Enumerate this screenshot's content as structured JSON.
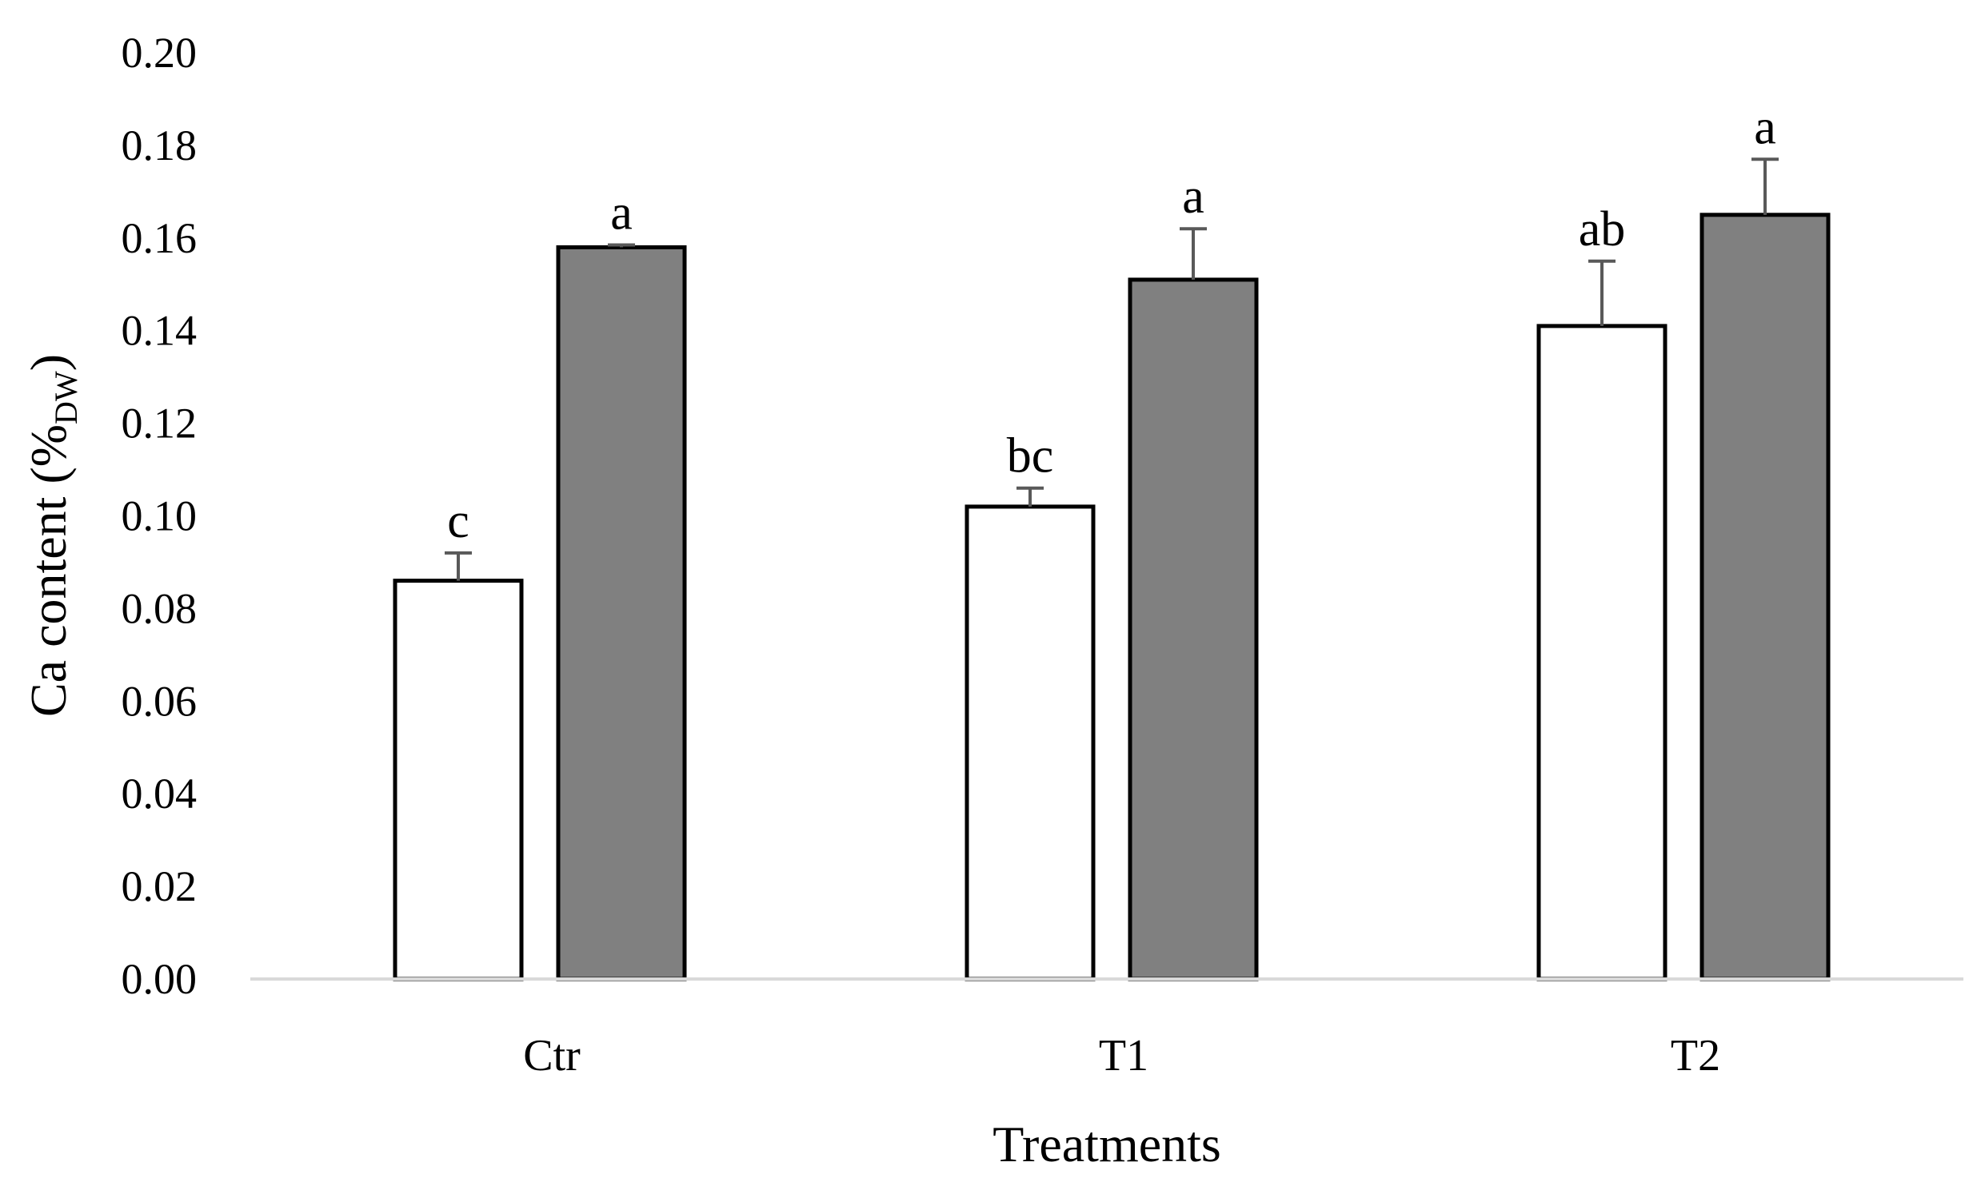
{
  "chart_data": {
    "type": "bar",
    "title": "",
    "xlabel": "Treatments",
    "ylabel": "Ca content (%",
    "ylabel_subscript": "DW",
    "ylabel_close": ")",
    "ylim": [
      0,
      0.2
    ],
    "yticks": [
      "0.00",
      "0.02",
      "0.04",
      "0.06",
      "0.08",
      "0.10",
      "0.12",
      "0.14",
      "0.16",
      "0.18",
      "0.20"
    ],
    "grid": false,
    "legend": "none",
    "categories": [
      "Ctr",
      "T1",
      "T2"
    ],
    "series": [
      {
        "name": "series-1",
        "color": "#ffffff",
        "values": [
          0.086,
          0.102,
          0.141
        ],
        "errors": [
          0.006,
          0.004,
          0.014
        ],
        "labels": [
          "c",
          "bc",
          "ab"
        ]
      },
      {
        "name": "series-2",
        "color": "#808080",
        "values": [
          0.158,
          0.151,
          0.165
        ],
        "errors": [
          0.0005,
          0.011,
          0.012
        ],
        "labels": [
          "a",
          "a",
          "a"
        ]
      }
    ]
  }
}
